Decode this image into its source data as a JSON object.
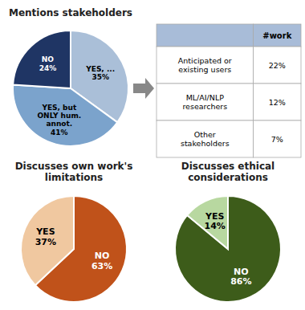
{
  "chart_data": [
    {
      "type": "pie",
      "title": "Mentions stakeholders",
      "categories": [
        "YES, ...",
        "YES, but\nONLY hum.\nannot.",
        "NO"
      ],
      "values": [
        35,
        41,
        24
      ],
      "value_labels": [
        "35%",
        "41%",
        "24%"
      ],
      "colors": [
        "#aabfd8",
        "#7ba3cc",
        "#1f3564"
      ],
      "data_labels": true
    },
    {
      "type": "table",
      "categories": [
        "Anticipated or\nexisting users",
        "ML/AI/NLP\nresearchers",
        "Other\nstakeholders"
      ],
      "series": [
        {
          "name": "#work",
          "values": [
            22,
            12,
            7
          ],
          "value_labels": [
            "22%",
            "12%",
            "7%"
          ]
        }
      ],
      "color": "#a8bcd8",
      "data_labels": true
    },
    {
      "type": "pie",
      "title": "Discusses own work's\nlimitations",
      "categories": [
        "NO",
        "YES"
      ],
      "values": [
        63,
        37
      ],
      "value_labels": [
        "63%",
        "37%"
      ],
      "colors": [
        "#c0521a",
        "#f0c8a0"
      ],
      "data_labels": true
    },
    {
      "type": "pie",
      "title": "Discusses ethical\nconsiderations",
      "categories": [
        "NO",
        "YES"
      ],
      "values": [
        86,
        14
      ],
      "value_labels": [
        "86%",
        "14%"
      ],
      "colors": [
        "#3d5c1a",
        "#b8d8a0"
      ],
      "data_labels": true
    }
  ]
}
